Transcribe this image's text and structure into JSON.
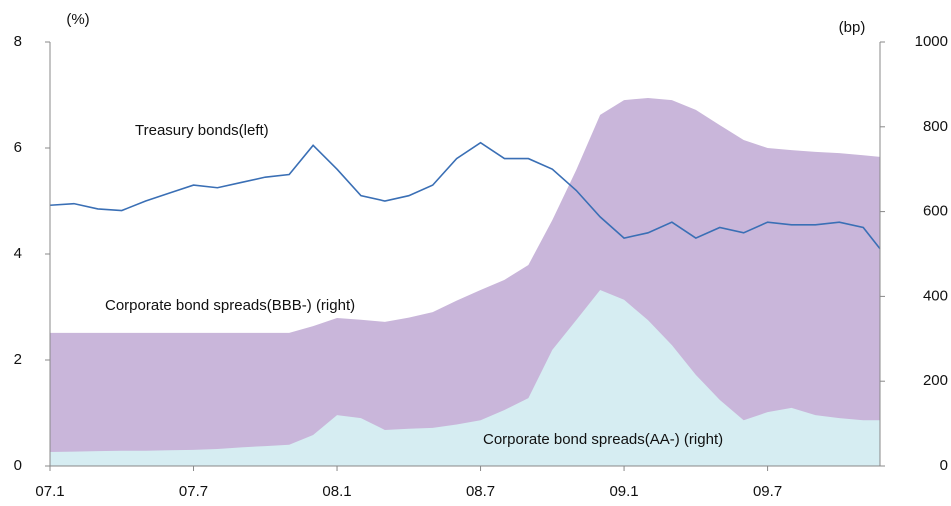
{
  "chart_data": {
    "type": "area-line",
    "ylabel": "(%)",
    "y2label": "(bp)",
    "x": [
      0,
      1,
      2,
      3,
      4,
      5,
      6,
      7,
      8,
      9,
      10,
      11,
      12,
      13,
      14,
      15,
      16,
      17,
      18,
      19,
      20,
      21,
      22,
      23,
      24,
      25,
      26,
      27,
      28,
      29,
      30,
      31,
      32,
      33,
      34,
      34.7
    ],
    "xlim": [
      0,
      34.7
    ],
    "xticks": [
      {
        "value": 0,
        "label": "07.1"
      },
      {
        "value": 6,
        "label": "07.7"
      },
      {
        "value": 12,
        "label": "08.1"
      },
      {
        "value": 18,
        "label": "08.7"
      },
      {
        "value": 24,
        "label": "09.1"
      },
      {
        "value": 30,
        "label": "09.7"
      }
    ],
    "ylim": [
      0,
      8
    ],
    "yticks": [
      0,
      2,
      4,
      6,
      8
    ],
    "y2lim": [
      0,
      1000
    ],
    "y2ticks": [
      0,
      200,
      400,
      600,
      800,
      1000
    ],
    "grid": false,
    "series": [
      {
        "name": "Corporate bond spreads(BBB-) (right)",
        "color": "#c9b6da",
        "axis": "y2",
        "kind": "area",
        "values": [
          314,
          314,
          314,
          314,
          314,
          314,
          314,
          314,
          314,
          314,
          314,
          330,
          349,
          345,
          340,
          350,
          363,
          390,
          415,
          439,
          474,
          580,
          698,
          828,
          863,
          868,
          863,
          840,
          804,
          769,
          750,
          745,
          741,
          738,
          733,
          729
        ]
      },
      {
        "name": "Corporate bond spreads(AA-) (right)",
        "color": "#d6edf2",
        "axis": "y2",
        "kind": "area",
        "values": [
          33,
          34,
          35,
          36,
          36,
          37,
          38,
          40,
          44,
          47,
          50,
          73,
          120,
          113,
          85,
          88,
          90,
          98,
          108,
          132,
          160,
          274,
          344,
          415,
          392,
          344,
          285,
          215,
          156,
          108,
          127,
          137,
          120,
          113,
          108,
          108
        ]
      },
      {
        "name": "Treasury bonds(left)",
        "color": "#3a6fb5",
        "axis": "y",
        "kind": "line",
        "values": [
          4.92,
          4.95,
          4.85,
          4.82,
          5.0,
          5.15,
          5.3,
          5.25,
          5.35,
          5.45,
          5.5,
          6.05,
          5.6,
          5.1,
          5.0,
          5.1,
          5.3,
          5.8,
          6.1,
          5.8,
          5.8,
          5.6,
          5.2,
          4.7,
          4.3,
          4.4,
          4.6,
          4.3,
          4.5,
          4.4,
          4.6,
          4.55,
          4.55,
          4.6,
          4.5,
          4.1
        ]
      }
    ]
  }
}
